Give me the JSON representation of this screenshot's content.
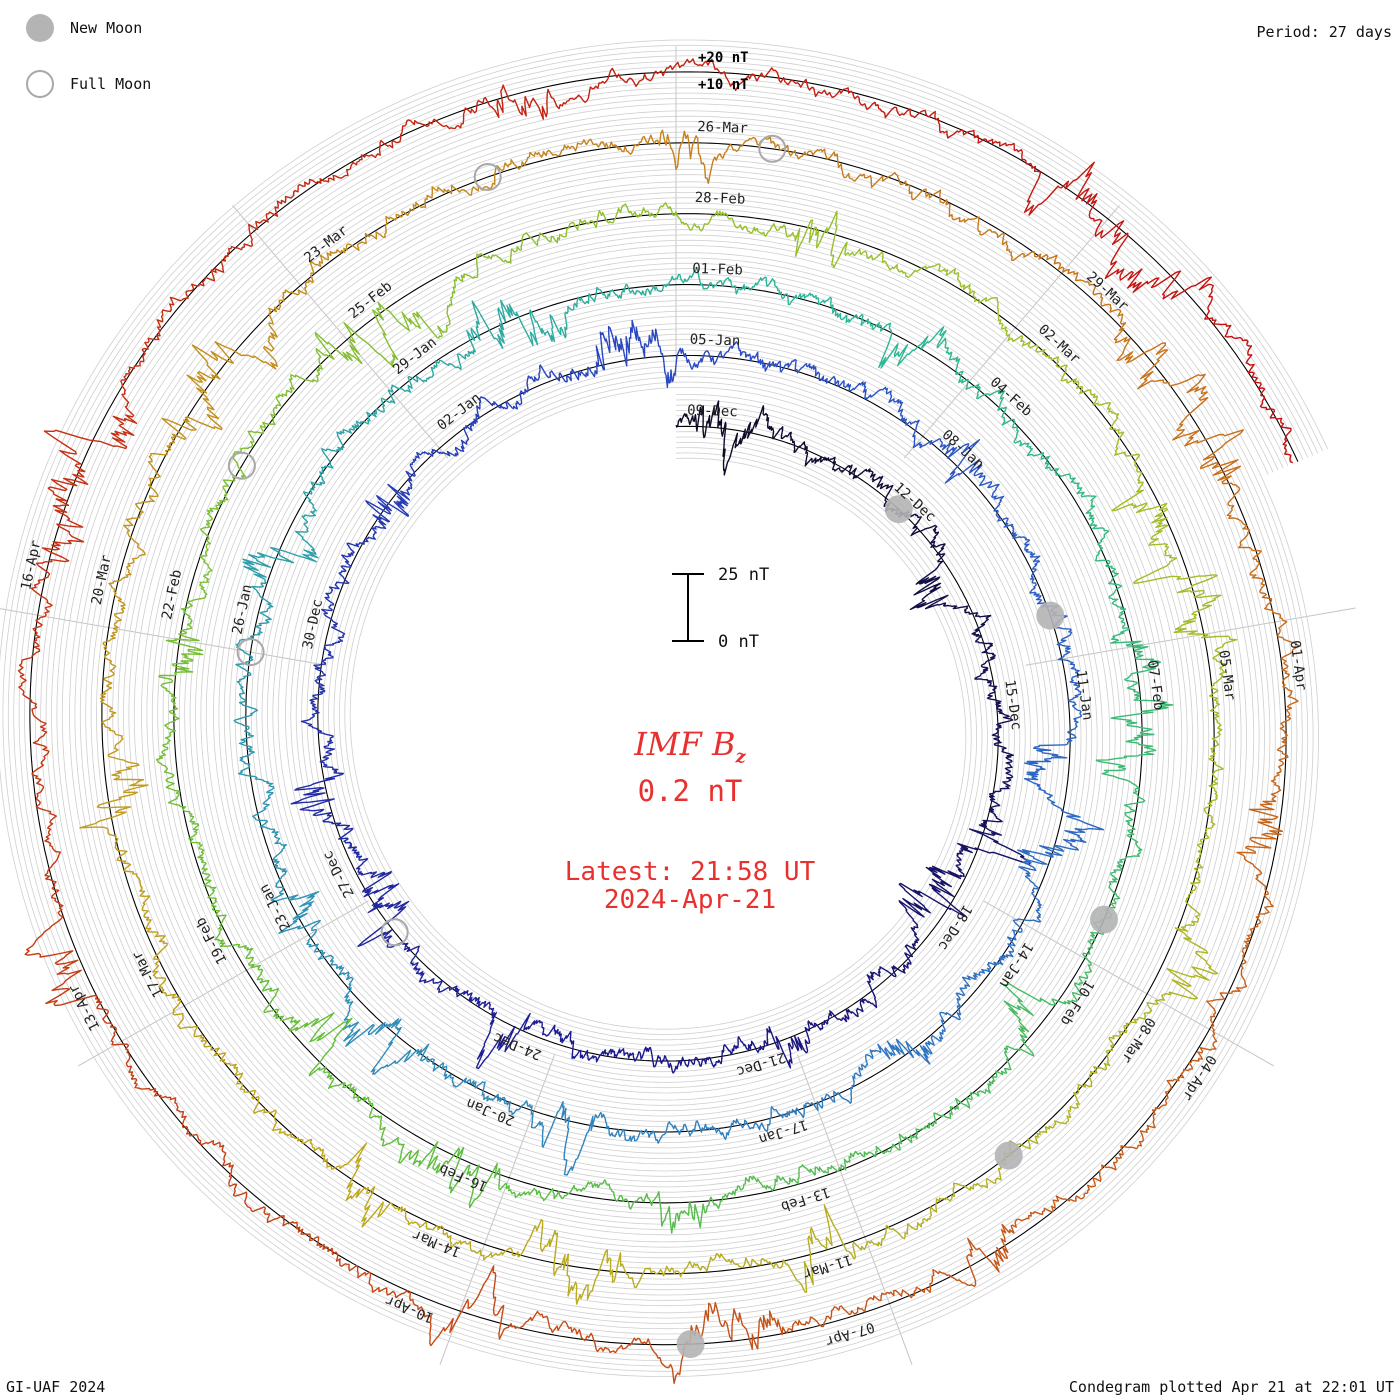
{
  "legend": {
    "new_moon_label": "New Moon",
    "full_moon_label": "Full Moon"
  },
  "header": {
    "period_label": "Period: 27 days"
  },
  "footer": {
    "credit": "GI-UAF 2024",
    "plotted": "Condegram plotted Apr 21 at 22:01 UT"
  },
  "center": {
    "title_main": "IMF B",
    "title_sub": "z",
    "value": "0.2 nT",
    "latest_line1": "Latest: 21:58 UT",
    "latest_line2": "2024-Apr-21"
  },
  "chart_data": {
    "type": "spiral-condegram",
    "title": "IMF Bz",
    "period_days": 27,
    "rings": 5,
    "start_date": "09-Dec",
    "end_date": "21-Apr",
    "scale_bar": {
      "top_label": "25 nT",
      "bottom_label": "0 nT",
      "span_nT": 25
    },
    "outer_labels": [
      "+20 nT",
      "+10 nT"
    ],
    "date_labels": [
      {
        "text": "09-Dec",
        "turn": 0,
        "day": 0
      },
      {
        "text": "12-Dec",
        "turn": 0,
        "day": 3
      },
      {
        "text": "15-Dec",
        "turn": 0,
        "day": 6
      },
      {
        "text": "18-Dec",
        "turn": 0,
        "day": 9
      },
      {
        "text": "21-Dec",
        "turn": 0,
        "day": 12
      },
      {
        "text": "24-Dec",
        "turn": 0,
        "day": 15
      },
      {
        "text": "27-Dec",
        "turn": 0,
        "day": 18
      },
      {
        "text": "30-Dec",
        "turn": 0,
        "day": 21
      },
      {
        "text": "02-Jan",
        "turn": 0,
        "day": 24
      },
      {
        "text": "05-Jan",
        "turn": 1,
        "day": 0
      },
      {
        "text": "08-Jan",
        "turn": 1,
        "day": 3
      },
      {
        "text": "11-Jan",
        "turn": 1,
        "day": 6
      },
      {
        "text": "14-Jan",
        "turn": 1,
        "day": 9
      },
      {
        "text": "17-Jan",
        "turn": 1,
        "day": 12
      },
      {
        "text": "20-Jan",
        "turn": 1,
        "day": 15
      },
      {
        "text": "23-Jan",
        "turn": 1,
        "day": 18
      },
      {
        "text": "26-Jan",
        "turn": 1,
        "day": 21
      },
      {
        "text": "29-Jan",
        "turn": 1,
        "day": 24
      },
      {
        "text": "01-Feb",
        "turn": 2,
        "day": 0
      },
      {
        "text": "04-Feb",
        "turn": 2,
        "day": 3
      },
      {
        "text": "07-Feb",
        "turn": 2,
        "day": 6
      },
      {
        "text": "10-Feb",
        "turn": 2,
        "day": 9
      },
      {
        "text": "13-Feb",
        "turn": 2,
        "day": 12
      },
      {
        "text": "16-Feb",
        "turn": 2,
        "day": 15
      },
      {
        "text": "19-Feb",
        "turn": 2,
        "day": 18
      },
      {
        "text": "22-Feb",
        "turn": 2,
        "day": 21
      },
      {
        "text": "25-Feb",
        "turn": 2,
        "day": 24
      },
      {
        "text": "28-Feb",
        "turn": 3,
        "day": 0
      },
      {
        "text": "02-Mar",
        "turn": 3,
        "day": 3
      },
      {
        "text": "05-Mar",
        "turn": 3,
        "day": 6
      },
      {
        "text": "08-Mar",
        "turn": 3,
        "day": 9
      },
      {
        "text": "11-Mar",
        "turn": 3,
        "day": 12
      },
      {
        "text": "14-Mar",
        "turn": 3,
        "day": 15
      },
      {
        "text": "17-Mar",
        "turn": 3,
        "day": 18
      },
      {
        "text": "20-Mar",
        "turn": 3,
        "day": 21
      },
      {
        "text": "23-Mar",
        "turn": 3,
        "day": 24
      },
      {
        "text": "26-Mar",
        "turn": 4,
        "day": 0
      },
      {
        "text": "29-Mar",
        "turn": 4,
        "day": 3
      },
      {
        "text": "01-Apr",
        "turn": 4,
        "day": 6
      },
      {
        "text": "04-Apr",
        "turn": 4,
        "day": 9
      },
      {
        "text": "07-Apr",
        "turn": 4,
        "day": 12
      },
      {
        "text": "10-Apr",
        "turn": 4,
        "day": 15
      },
      {
        "text": "13-Apr",
        "turn": 4,
        "day": 18
      },
      {
        "text": "16-Apr",
        "turn": 4,
        "day": 21
      }
    ],
    "new_moons": [
      {
        "turn": 0,
        "day": 3.4
      },
      {
        "turn": 1,
        "day": 5.5
      },
      {
        "turn": 2,
        "day": 8.6
      },
      {
        "turn": 3,
        "day": 10.7
      },
      {
        "turn": 4,
        "day": 13.4
      }
    ],
    "full_moons": [
      {
        "turn": 0,
        "day": 17.5
      },
      {
        "turn": 1,
        "day": 21.0
      },
      {
        "turn": 2,
        "day": 22.6
      },
      {
        "turn": 3,
        "day": 25.6
      },
      {
        "turn": 4,
        "day": 0.7
      }
    ],
    "data_note": "One-minute IMF Bz trace, approx. range -20 to +20 nT, plotted along a 27-day-per-turn spiral, colored from dark navy (Dec) through blue, teal, green, olive, gold, orange to red (Apr)."
  },
  "colors": {
    "trace_gradient": [
      "#0d0a20",
      "#1c178e",
      "#2a4cc6",
      "#2f86bf",
      "#2bb797",
      "#5dbe3a",
      "#9fc02b",
      "#c0a61c",
      "#c8731a",
      "#c53f14",
      "#c41010"
    ],
    "accent": "#e8302e",
    "grid": "#bdbdbd",
    "moon": "#b4b4b4"
  }
}
